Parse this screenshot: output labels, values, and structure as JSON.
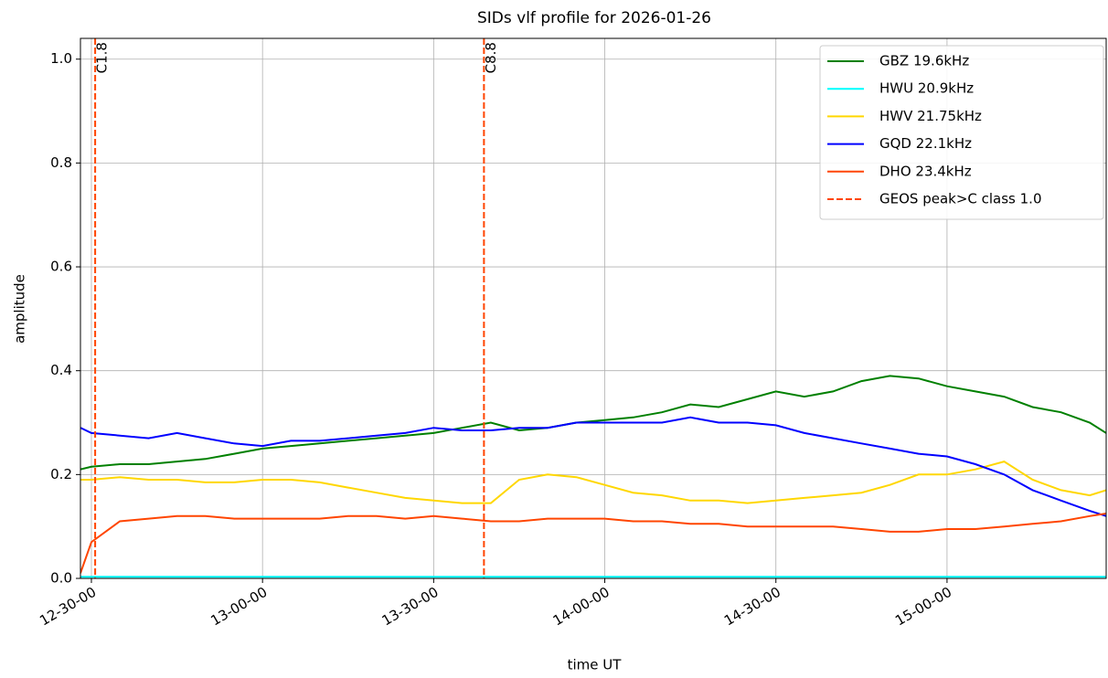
{
  "chart_data": {
    "type": "line",
    "title": "SIDs vlf profile for 2026-01-26",
    "xlabel": "time UT",
    "ylabel": "amplitude",
    "x": [
      12.468,
      12.5,
      12.583,
      12.667,
      12.75,
      12.833,
      12.917,
      13.0,
      13.083,
      13.167,
      13.25,
      13.333,
      13.417,
      13.5,
      13.583,
      13.667,
      13.75,
      13.833,
      13.917,
      14.0,
      14.083,
      14.167,
      14.25,
      14.333,
      14.417,
      14.5,
      14.583,
      14.667,
      14.75,
      14.833,
      14.917,
      15.0,
      15.083,
      15.167,
      15.25,
      15.333,
      15.417,
      15.465
    ],
    "series": [
      {
        "name": "GBZ 19.6kHz",
        "color": "green",
        "values": [
          0.21,
          0.215,
          0.22,
          0.22,
          0.225,
          0.23,
          0.24,
          0.25,
          0.255,
          0.26,
          0.265,
          0.27,
          0.275,
          0.28,
          0.29,
          0.3,
          0.285,
          0.29,
          0.3,
          0.305,
          0.31,
          0.32,
          0.335,
          0.33,
          0.345,
          0.36,
          0.35,
          0.36,
          0.38,
          0.39,
          0.385,
          0.37,
          0.36,
          0.35,
          0.33,
          0.32,
          0.3,
          0.28
        ]
      },
      {
        "name": "HWU 20.9kHz",
        "color": "cyan",
        "values": [
          0.003,
          0.003,
          0.003,
          0.003,
          0.003,
          0.003,
          0.003,
          0.003,
          0.003,
          0.003,
          0.003,
          0.003,
          0.003,
          0.003,
          0.003,
          0.003,
          0.003,
          0.003,
          0.003,
          0.003,
          0.003,
          0.003,
          0.003,
          0.003,
          0.003,
          0.003,
          0.003,
          0.003,
          0.003,
          0.003,
          0.003,
          0.003,
          0.003,
          0.003,
          0.003,
          0.003,
          0.003,
          0.003
        ]
      },
      {
        "name": "HWV 21.75kHz",
        "color": "gold",
        "values": [
          0.19,
          0.19,
          0.195,
          0.19,
          0.19,
          0.185,
          0.185,
          0.19,
          0.19,
          0.185,
          0.175,
          0.165,
          0.155,
          0.15,
          0.145,
          0.145,
          0.19,
          0.2,
          0.195,
          0.18,
          0.165,
          0.16,
          0.15,
          0.15,
          0.145,
          0.15,
          0.155,
          0.16,
          0.165,
          0.18,
          0.2,
          0.2,
          0.21,
          0.225,
          0.19,
          0.17,
          0.16,
          0.17
        ]
      },
      {
        "name": "GQD 22.1kHz",
        "color": "blue",
        "values": [
          0.29,
          0.28,
          0.275,
          0.27,
          0.28,
          0.27,
          0.26,
          0.255,
          0.265,
          0.265,
          0.27,
          0.275,
          0.28,
          0.29,
          0.285,
          0.285,
          0.29,
          0.29,
          0.3,
          0.3,
          0.3,
          0.3,
          0.31,
          0.3,
          0.3,
          0.295,
          0.28,
          0.27,
          0.26,
          0.25,
          0.24,
          0.235,
          0.22,
          0.2,
          0.17,
          0.15,
          0.13,
          0.12
        ]
      },
      {
        "name": "DHO 23.4kHz",
        "color": "orangered",
        "values": [
          0.01,
          0.07,
          0.11,
          0.115,
          0.12,
          0.12,
          0.115,
          0.115,
          0.115,
          0.115,
          0.12,
          0.12,
          0.115,
          0.12,
          0.115,
          0.11,
          0.11,
          0.115,
          0.115,
          0.115,
          0.11,
          0.11,
          0.105,
          0.105,
          0.1,
          0.1,
          0.1,
          0.1,
          0.095,
          0.09,
          0.09,
          0.095,
          0.095,
          0.1,
          0.105,
          0.11,
          0.12,
          0.125
        ]
      }
    ],
    "vlines": [
      {
        "x": 12.511,
        "label": "C1.8"
      },
      {
        "x": 13.647,
        "label": "C8.8"
      }
    ],
    "vline_color": "orangered",
    "vline_legend": "GEOS peak>C class 1.0",
    "xlim": [
      12.468,
      15.465
    ],
    "xticks": [
      {
        "value": 12.5,
        "label": "12-30-00"
      },
      {
        "value": 13.0,
        "label": "13-00-00"
      },
      {
        "value": 13.5,
        "label": "13-30-00"
      },
      {
        "value": 14.0,
        "label": "14-00-00"
      },
      {
        "value": 14.5,
        "label": "14-30-00"
      },
      {
        "value": 15.0,
        "label": "15-00-00"
      }
    ],
    "ylim": [
      0,
      1.04
    ],
    "yticks": [
      {
        "value": 0,
        "label": "0.0"
      },
      0.2,
      0.4,
      0.6,
      0.8,
      {
        "value": 1,
        "label": "1.0"
      }
    ],
    "grid": true,
    "legend": "upper right"
  }
}
